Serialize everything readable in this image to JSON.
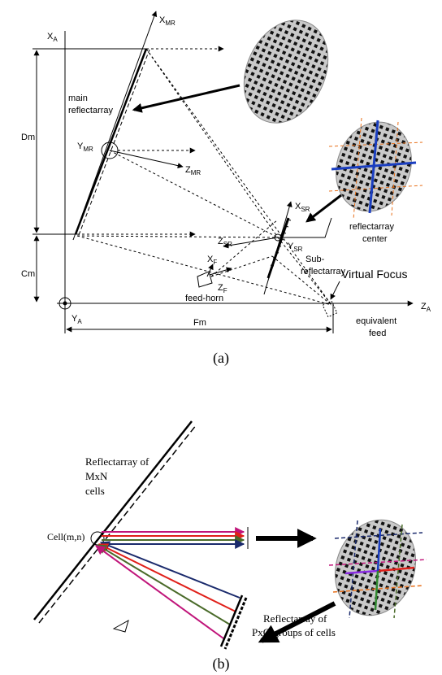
{
  "figure_a": {
    "symbols": {
      "xa": {
        "base": "X",
        "sub": "A"
      },
      "xmr": {
        "base": "X",
        "sub": "MR"
      },
      "ymr": {
        "base": "Y",
        "sub": "MR"
      },
      "zmr": {
        "base": "Z",
        "sub": "MR"
      },
      "xsr": {
        "base": "X",
        "sub": "SR"
      },
      "zsr": {
        "base": "Z",
        "sub": "SR"
      },
      "ysr": {
        "base": "Y",
        "sub": "SR"
      },
      "xf": {
        "base": "X",
        "sub": "F"
      },
      "zf": {
        "base": "Z",
        "sub": "F"
      },
      "za": {
        "base": "Z",
        "sub": "A"
      },
      "ya": {
        "base": "Y",
        "sub": "A"
      }
    },
    "dimensions": {
      "dm": "Dm",
      "cm": "Cm",
      "fm": "Fm"
    },
    "labels": {
      "main_reflectarray": [
        "main",
        "reflectarray"
      ],
      "reflectarray_center": [
        "reflectarray",
        "center"
      ],
      "sub_reflectarray": [
        "Sub-",
        "reflectarray"
      ],
      "feed_horn": "feed-horn",
      "virtual_focus": "Virtual Focus",
      "equivalent_feed": [
        "equivalent",
        "feed"
      ]
    },
    "caption": "(a)"
  },
  "figure_b": {
    "main_label": [
      "Reflectarray of",
      "MxN",
      "cells"
    ],
    "cell_label": "Cell(m,n)",
    "sub_label": [
      "Reflectarray of",
      "PxQ groups of cells"
    ],
    "caption": "(b)"
  }
}
